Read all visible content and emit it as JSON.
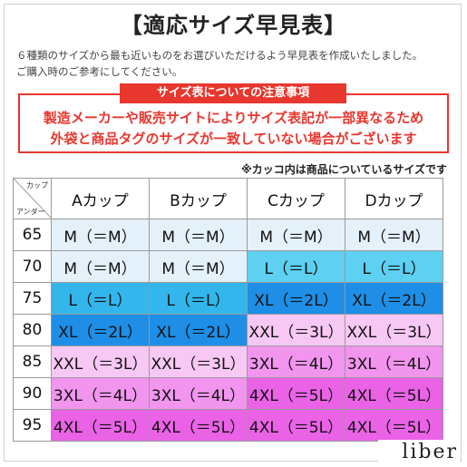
{
  "title": "【適応サイズ早見表】",
  "description": [
    "６種類のサイズから最も近いものをお選びいただけるよう早見表を作成いたしました。",
    "ご購入時のご参考にしてください。"
  ],
  "notice": {
    "heading": "サイズ表についての注意事項",
    "lines": [
      "製造メーカーや販売サイトによりサイズ表記が一部異なるため",
      "外袋と商品タグのサイズが一致していない場合がございます"
    ]
  },
  "note": "※カッコ内は商品についているサイズです",
  "table": {
    "corner_top": "カップ",
    "corner_bottom": "アンダー",
    "columns": [
      "Aカップ",
      "Bカップ",
      "Cカップ",
      "Dカップ"
    ],
    "rows": [
      {
        "under": "65",
        "cells": [
          "M（＝M）",
          "M（＝M）",
          "M（＝M）",
          "M（＝M）"
        ]
      },
      {
        "under": "70",
        "cells": [
          "M（＝M）",
          "M（＝M）",
          "L（＝L）",
          "L（＝L）"
        ]
      },
      {
        "under": "75",
        "cells": [
          "L（＝L）",
          "L（＝L）",
          "XL（＝2L）",
          "XL（＝2L）"
        ]
      },
      {
        "under": "80",
        "cells": [
          "XL（＝2L）",
          "XL（＝2L）",
          "XXL（＝3L）",
          "XXL（＝3L）"
        ]
      },
      {
        "under": "85",
        "cells": [
          "XXL（＝3L）",
          "XXL（＝3L）",
          "3XL（＝4L）",
          "3XL（＝4L）"
        ]
      },
      {
        "under": "90",
        "cells": [
          "3XL（＝4L）",
          "3XL（＝4L）",
          "4XL（＝5L）",
          "4XL（＝5L）"
        ]
      },
      {
        "under": "95",
        "cells": [
          "4XL（＝5L）",
          "4XL（＝5L）",
          "4XL（＝5L）",
          "4XL（＝5L）"
        ]
      }
    ]
  },
  "colors": {
    "notice_red": "#e8372f",
    "M": "#e4f1fa",
    "L_pale": "#5ed0f2",
    "L": "#33b6ec",
    "XL": "#1e8ee6",
    "XXL": "#f7c8f3",
    "3XL": "#f195ee",
    "4XL": "#ea62e6"
  },
  "brand": "liber"
}
